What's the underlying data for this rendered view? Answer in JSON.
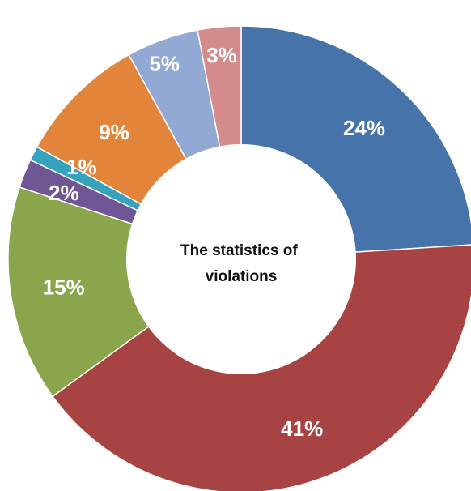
{
  "chart_data": {
    "type": "pie",
    "donut": true,
    "title": "The statistics of violations",
    "title_lines": [
      "The statistics of",
      "violations"
    ],
    "slices": [
      {
        "label": "24%",
        "value": 24,
        "color": "#4673a9"
      },
      {
        "label": "41%",
        "value": 41,
        "color": "#a74443"
      },
      {
        "label": "15%",
        "value": 15,
        "color": "#8aa54b"
      },
      {
        "label": "2%",
        "value": 2,
        "color": "#6f5694"
      },
      {
        "label": "1%",
        "value": 1,
        "color": "#36a2bc"
      },
      {
        "label": "9%",
        "value": 9,
        "color": "#e2853a"
      },
      {
        "label": "5%",
        "value": 5,
        "color": "#92a9d3"
      },
      {
        "label": "3%",
        "value": 3,
        "color": "#d38b8b"
      }
    ],
    "legend": "none"
  }
}
